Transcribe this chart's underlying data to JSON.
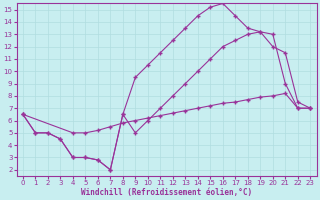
{
  "background_color": "#c8eef0",
  "line_color": "#993399",
  "grid_color": "#b0dde0",
  "xlabel": "Windchill (Refroidissement éolien,°C)",
  "xlim": [
    -0.5,
    23.5
  ],
  "ylim": [
    1.5,
    15.5
  ],
  "xticks": [
    0,
    1,
    2,
    3,
    4,
    5,
    6,
    7,
    8,
    9,
    10,
    11,
    12,
    13,
    14,
    15,
    16,
    17,
    18,
    19,
    20,
    21,
    22,
    23
  ],
  "yticks": [
    2,
    3,
    4,
    5,
    6,
    7,
    8,
    9,
    10,
    11,
    12,
    13,
    14,
    15
  ],
  "line1_x": [
    0,
    1,
    2,
    3,
    4,
    5,
    6,
    7,
    8,
    9,
    10,
    11,
    12,
    13,
    14,
    15,
    16,
    17,
    18,
    19,
    20,
    21,
    22,
    23
  ],
  "line1_y": [
    6.5,
    5.0,
    5.0,
    4.5,
    3.0,
    3.0,
    2.8,
    2.0,
    6.5,
    5.0,
    6.0,
    7.0,
    8.0,
    9.0,
    10.0,
    11.0,
    12.0,
    12.5,
    13.0,
    13.2,
    13.0,
    9.0,
    7.0,
    7.0
  ],
  "line2_x": [
    0,
    1,
    2,
    3,
    4,
    5,
    6,
    7,
    8,
    9,
    10,
    11,
    12,
    13,
    14,
    15,
    16,
    17,
    18,
    19,
    20,
    21,
    22,
    23
  ],
  "line2_y": [
    6.5,
    5.0,
    5.0,
    4.5,
    3.0,
    3.0,
    2.8,
    2.0,
    6.5,
    9.5,
    10.5,
    11.5,
    12.5,
    13.5,
    14.5,
    15.2,
    15.5,
    14.5,
    13.5,
    13.2,
    12.0,
    11.5,
    7.5,
    7.0
  ],
  "line3_x": [
    0,
    4,
    5,
    6,
    7,
    8,
    9,
    10,
    11,
    12,
    13,
    14,
    15,
    16,
    17,
    18,
    19,
    20,
    21,
    22,
    23
  ],
  "line3_y": [
    6.5,
    5.0,
    5.0,
    5.2,
    5.5,
    5.8,
    6.0,
    6.2,
    6.4,
    6.6,
    6.8,
    7.0,
    7.2,
    7.4,
    7.5,
    7.7,
    7.9,
    8.0,
    8.2,
    7.0,
    7.0
  ]
}
